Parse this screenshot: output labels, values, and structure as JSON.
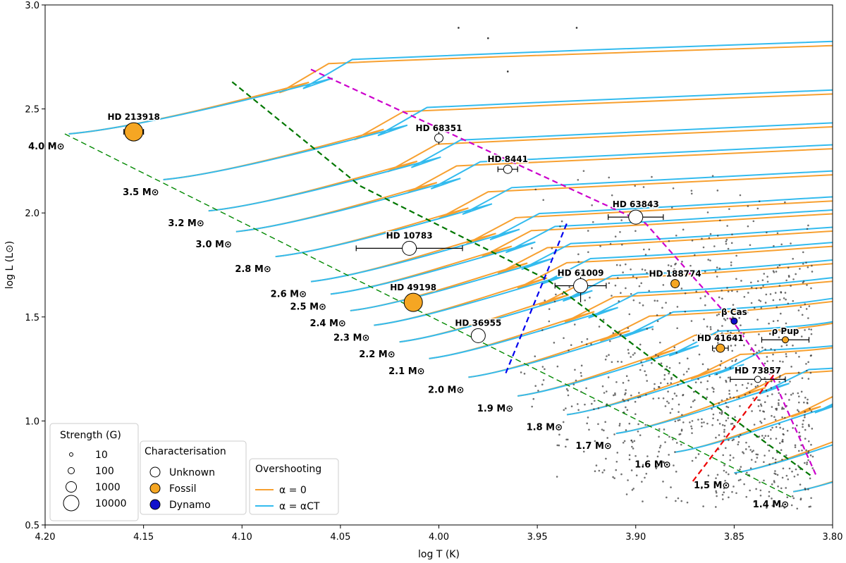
{
  "chart_data": {
    "type": "scatter",
    "xlabel": "log T (K)",
    "ylabel": "log L (L⊙)",
    "xlim": [
      4.2,
      3.8
    ],
    "ylim": [
      0.5,
      3.0
    ],
    "xticks": [
      4.2,
      4.15,
      4.1,
      4.05,
      4.0,
      3.95,
      3.9,
      3.85,
      3.8
    ],
    "xtick_labels": [
      "4.20",
      "4.15",
      "4.10",
      "4.05",
      "4.00",
      "3.95",
      "3.90",
      "3.85",
      "3.80"
    ],
    "yticks": [
      0.5,
      1.0,
      1.5,
      2.0,
      2.5,
      3.0
    ],
    "ytick_labels": [
      "0.5",
      "1.0",
      "1.5",
      "2.0",
      "2.5",
      "3.0"
    ],
    "mass_tracks": [
      {
        "label": "4.0 M⊙",
        "mass": 4.0,
        "zams": [
          4.188,
          2.38
        ]
      },
      {
        "label": "3.5 M⊙",
        "mass": 3.5,
        "zams": [
          4.14,
          2.16
        ]
      },
      {
        "label": "3.2 M⊙",
        "mass": 3.2,
        "zams": [
          4.117,
          2.01
        ]
      },
      {
        "label": "3.0 M⊙",
        "mass": 3.0,
        "zams": [
          4.103,
          1.91
        ]
      },
      {
        "label": "2.8 M⊙",
        "mass": 2.8,
        "zams": [
          4.083,
          1.79
        ]
      },
      {
        "label": "2.6 M⊙",
        "mass": 2.6,
        "zams": [
          4.065,
          1.67
        ]
      },
      {
        "label": "2.5 M⊙",
        "mass": 2.5,
        "zams": [
          4.055,
          1.61
        ]
      },
      {
        "label": "2.4 M⊙",
        "mass": 2.4,
        "zams": [
          4.045,
          1.53
        ]
      },
      {
        "label": "2.3 M⊙",
        "mass": 2.3,
        "zams": [
          4.033,
          1.46
        ]
      },
      {
        "label": "2.2 M⊙",
        "mass": 2.2,
        "zams": [
          4.02,
          1.38
        ]
      },
      {
        "label": "2.1 M⊙",
        "mass": 2.1,
        "zams": [
          4.005,
          1.3
        ]
      },
      {
        "label": "2.0 M⊙",
        "mass": 2.0,
        "zams": [
          3.985,
          1.21
        ]
      },
      {
        "label": "1.9 M⊙",
        "mass": 1.9,
        "zams": [
          3.96,
          1.12
        ]
      },
      {
        "label": "1.8 M⊙",
        "mass": 1.8,
        "zams": [
          3.935,
          1.03
        ]
      },
      {
        "label": "1.7 M⊙",
        "mass": 1.7,
        "zams": [
          3.91,
          0.94
        ]
      },
      {
        "label": "1.6 M⊙",
        "mass": 1.6,
        "zams": [
          3.88,
          0.85
        ]
      },
      {
        "label": "1.5 M⊙",
        "mass": 1.5,
        "zams": [
          3.85,
          0.75
        ]
      },
      {
        "label": "1.4 M⊙",
        "mass": 1.4,
        "zams": [
          3.82,
          0.66
        ]
      }
    ],
    "stars": [
      {
        "name": "HD 213918",
        "logT": 4.155,
        "logL": 2.39,
        "strength": 10000,
        "type": "Fossil",
        "xerr": 0.005,
        "yerr": 0.01
      },
      {
        "name": "HD 68351",
        "logT": 4.0,
        "logL": 2.36,
        "strength": 100,
        "type": "Unknown",
        "xerr": 0.0,
        "yerr": 0.03
      },
      {
        "name": "HD 8441",
        "logT": 3.965,
        "logL": 2.21,
        "strength": 100,
        "type": "Unknown",
        "xerr": 0.005,
        "yerr": 0.0
      },
      {
        "name": "HD 63843",
        "logT": 3.9,
        "logL": 1.98,
        "strength": 1000,
        "type": "Unknown",
        "xerr": 0.014,
        "yerr": 0.02
      },
      {
        "name": "HD 10783",
        "logT": 4.015,
        "logL": 1.83,
        "strength": 1000,
        "type": "Unknown",
        "xerr": 0.027,
        "yerr": 0.0
      },
      {
        "name": "HD 61009",
        "logT": 3.928,
        "logL": 1.65,
        "strength": 1000,
        "type": "Unknown",
        "xerr": 0.013,
        "yerr": 0.08
      },
      {
        "name": "HD 188774",
        "logT": 3.88,
        "logL": 1.66,
        "strength": 100,
        "type": "Fossil",
        "xerr": 0.0,
        "yerr": 0.0
      },
      {
        "name": "HD 49198",
        "logT": 4.013,
        "logL": 1.57,
        "strength": 10000,
        "type": "Fossil",
        "xerr": 0.0,
        "yerr": 0.0
      },
      {
        "name": "HD 36955",
        "logT": 3.98,
        "logL": 1.41,
        "strength": 1000,
        "type": "Unknown",
        "xerr": 0.0,
        "yerr": 0.0
      },
      {
        "name": "β Cas",
        "logT": 3.85,
        "logL": 1.48,
        "strength": 10,
        "type": "Dynamo",
        "xerr": 0.0,
        "yerr": 0.0
      },
      {
        "name": "HD 41641",
        "logT": 3.857,
        "logL": 1.35,
        "strength": 100,
        "type": "Fossil",
        "xerr": 0.004,
        "yerr": 0.0
      },
      {
        "name": "ρ Pup",
        "logT": 3.824,
        "logL": 1.39,
        "strength": 10,
        "type": "Fossil",
        "xerr": 0.012,
        "yerr": 0.0
      },
      {
        "name": "HD 73857",
        "logT": 3.838,
        "logL": 1.2,
        "strength": 10,
        "type": "Unknown",
        "xerr": 0.014,
        "yerr": 0.0
      }
    ],
    "boundary_lines": [
      {
        "name": "magenta",
        "color": "#cc00cc",
        "points": [
          [
            4.065,
            2.69
          ],
          [
            3.895,
            1.95
          ],
          [
            3.85,
            1.47
          ],
          [
            3.83,
            1.2
          ],
          [
            3.808,
            0.73
          ]
        ]
      },
      {
        "name": "green",
        "color": "#007700",
        "points": [
          [
            4.105,
            2.63
          ],
          [
            4.04,
            2.13
          ],
          [
            3.945,
            1.68
          ],
          [
            3.875,
            1.18
          ],
          [
            3.81,
            0.73
          ]
        ]
      },
      {
        "name": "blue",
        "color": "#0000ee",
        "points": [
          [
            3.966,
            1.23
          ],
          [
            3.935,
            1.95
          ]
        ]
      },
      {
        "name": "red",
        "color": "#ee0000",
        "points": [
          [
            3.871,
            0.71
          ],
          [
            3.83,
            1.22
          ]
        ]
      },
      {
        "name": "zams",
        "color": "#008800",
        "points": [
          [
            4.19,
            2.38
          ],
          [
            3.82,
            0.63
          ]
        ]
      }
    ],
    "legends": {
      "strength": {
        "title": "Strength (G)",
        "items": [
          "10",
          "100",
          "1000",
          "10000"
        ]
      },
      "characterisation": {
        "title": "Characterisation",
        "items": [
          "Unknown",
          "Fossil",
          "Dynamo"
        ]
      },
      "overshooting": {
        "title": "Overshooting",
        "items": [
          "α = 0",
          "α = αCT"
        ]
      }
    },
    "colors": {
      "fossil": "#f5a623",
      "dynamo": "#1010cc",
      "unknown": "#ffffff",
      "track_alpha0": "#f7a030",
      "track_alphaCT": "#33bbee",
      "points": "#333333"
    }
  }
}
